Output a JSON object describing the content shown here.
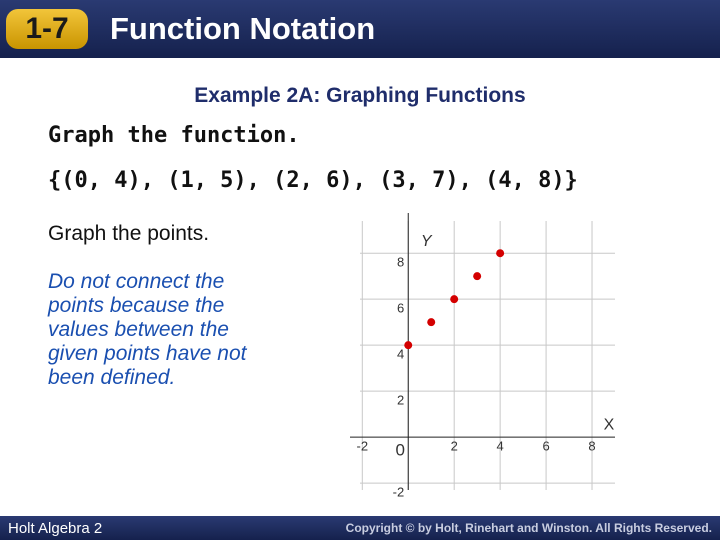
{
  "header": {
    "badge": "1-7",
    "title": "Function Notation"
  },
  "example_title": "Example 2A: Graphing Functions",
  "instruction": "Graph the function.",
  "function_set": "{(0, 4), (1, 5), (2, 6), (3, 7), (4, 8)}",
  "step": "Graph the points.",
  "note": "Do not connect the points because the values between the given points have not been defined.",
  "footer": {
    "left": "Holt Algebra 2",
    "right": "Copyright © by Holt, Rinehart and Winston. All Rights Reserved."
  },
  "chart_data": {
    "type": "scatter",
    "x_label": "X",
    "y_label": "Y",
    "x": [
      0,
      1,
      2,
      3,
      4
    ],
    "values": [
      4,
      5,
      6,
      7,
      8
    ],
    "color": "#d40000",
    "xlim": [
      -2.1,
      9.0
    ],
    "ylim": [
      -2.3,
      9.4
    ],
    "xticks": [
      -2,
      0,
      2,
      4,
      6,
      8
    ],
    "yticks": [
      -2,
      2,
      4,
      6,
      8
    ],
    "grid": true
  }
}
